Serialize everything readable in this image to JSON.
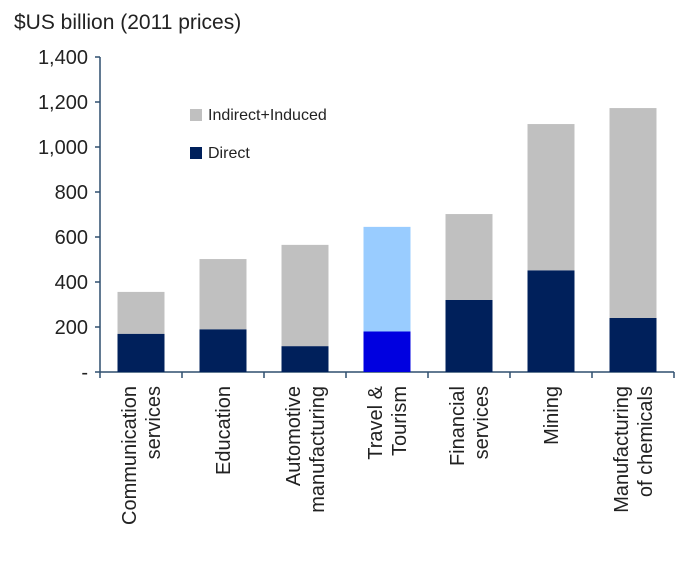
{
  "chart_data": {
    "type": "bar",
    "stacked": true,
    "title": "$US billion (2011 prices)",
    "ylabel": "$US billion (2011 prices)",
    "ylim": [
      0,
      1400
    ],
    "yticks": [
      0,
      200,
      400,
      600,
      800,
      1000,
      1200,
      1400
    ],
    "ytick_labels": [
      "-",
      "200",
      "400",
      "600",
      "800",
      "1,000",
      "1,200",
      "1,400"
    ],
    "categories": [
      [
        "Communication",
        "services"
      ],
      [
        "Education"
      ],
      [
        "Automotive",
        "manufacturing"
      ],
      [
        "Travel &",
        "Tourism"
      ],
      [
        "Financial",
        "services"
      ],
      [
        "Mining"
      ],
      [
        "Manufacturing",
        "of chemicals"
      ]
    ],
    "series": [
      {
        "name": "Direct",
        "color": "#00205b",
        "highlight_color": "#0000e0",
        "values": [
          170,
          190,
          115,
          180,
          320,
          452,
          240
        ]
      },
      {
        "name": "Indirect+Induced",
        "color": "#c0c0c0",
        "highlight_color": "#99ccff",
        "values": [
          186,
          312,
          450,
          465,
          382,
          650,
          933
        ]
      }
    ],
    "highlight_index": 3,
    "legend_position": "top-left"
  }
}
